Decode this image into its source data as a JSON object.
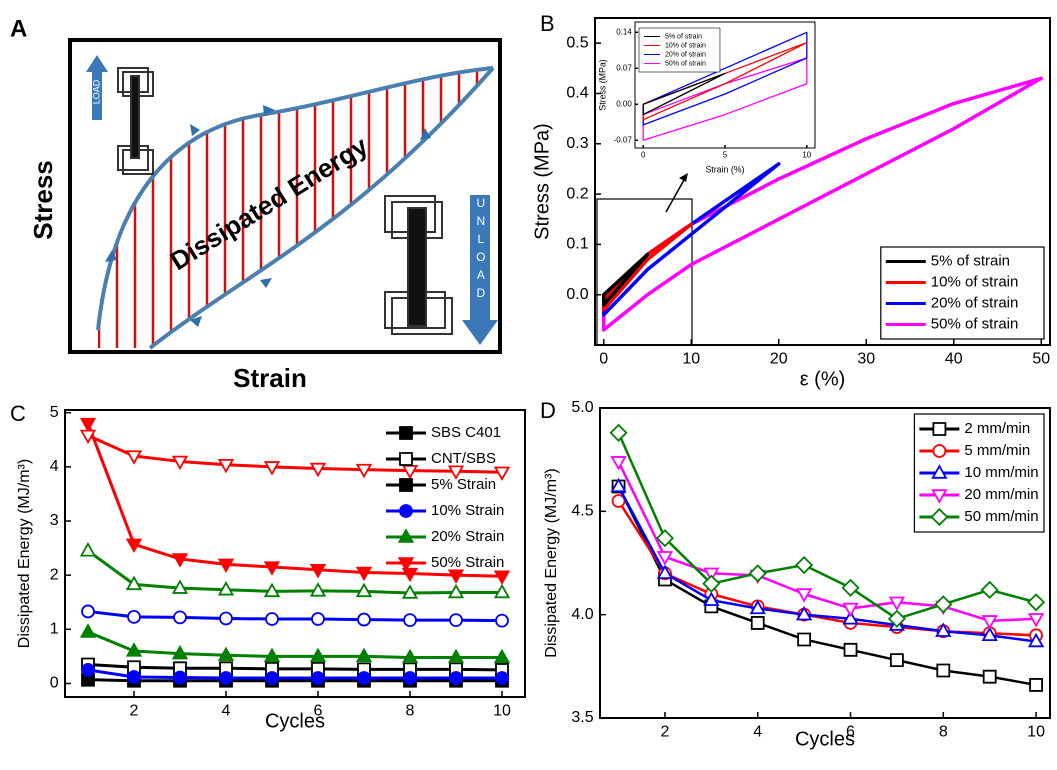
{
  "diagram": {
    "label": "A",
    "y_label": "Stress",
    "x_label": "Strain",
    "region_label": "Dissipated Energy",
    "load_label": "LOAD",
    "unload_label": "UNLOAD"
  },
  "chart_data": [
    {
      "type": "loop",
      "label": "B",
      "x_label": "ε (%)",
      "y_label": "Stress (MPa)",
      "xlim": [
        -1,
        51
      ],
      "ylim": [
        -0.1,
        0.55
      ],
      "xticks": [
        0,
        10,
        20,
        30,
        40,
        50
      ],
      "yticks": [
        {
          "value": 0,
          "label": "0.0"
        },
        0.1,
        0.2,
        0.3,
        0.4,
        0.5
      ],
      "legend": "lower right",
      "legend_frame": true,
      "series": [
        {
          "name": "5% of strain",
          "color": "#000000",
          "x": [
            0,
            2.5,
            5,
            2.5,
            0
          ],
          "y": [
            0,
            0.04,
            0.08,
            0.03,
            -0.02
          ]
        },
        {
          "name": "10% of strain",
          "color": "#ff0000",
          "x": [
            0,
            5,
            10,
            5,
            0
          ],
          "y": [
            -0.01,
            0.08,
            0.14,
            0.07,
            -0.03
          ]
        },
        {
          "name": "20% of strain",
          "color": "#0000ff",
          "x": [
            0,
            5,
            10,
            15,
            20,
            15,
            10,
            5,
            0
          ],
          "y": [
            -0.02,
            0.08,
            0.14,
            0.2,
            0.26,
            0.19,
            0.12,
            0.05,
            -0.04
          ]
        },
        {
          "name": "50% of strain",
          "color": "#ff00ff",
          "x": [
            0,
            5,
            10,
            20,
            30,
            40,
            50,
            40,
            30,
            20,
            10,
            5,
            0
          ],
          "y": [
            -0.02,
            0.08,
            0.14,
            0.23,
            0.31,
            0.38,
            0.43,
            0.33,
            0.24,
            0.15,
            0.06,
            0,
            -0.07
          ]
        }
      ]
    },
    {
      "type": "loop",
      "x_label": "Strain (%)",
      "y_label": "Stress (MPa)",
      "xlim": [
        -0.5,
        10.5
      ],
      "ylim": [
        -0.085,
        0.16
      ],
      "xticks": [
        0,
        5,
        10
      ],
      "yticks": [
        -0.07,
        {
          "value": 0,
          "label": "0.00"
        },
        0.07,
        0.14
      ],
      "legend": "upper left",
      "legend_frame": true,
      "series": [
        {
          "name": "5% of strain",
          "color": "#000000",
          "x": [
            0,
            2.5,
            5,
            2.5,
            0
          ],
          "y": [
            0,
            0.03,
            0.06,
            0.02,
            -0.02
          ]
        },
        {
          "name": "10% of strain",
          "color": "#ff0000",
          "x": [
            0,
            5,
            10,
            5,
            0
          ],
          "y": [
            0,
            0.06,
            0.12,
            0.04,
            -0.03
          ]
        },
        {
          "name": "20% of strain",
          "color": "#0000ff",
          "x": [
            0,
            5,
            10,
            10,
            5,
            0
          ],
          "y": [
            0,
            0.07,
            0.14,
            0.09,
            0.02,
            -0.04
          ]
        },
        {
          "name": "50% of strain",
          "color": "#ff00ff",
          "x": [
            0,
            5,
            10,
            10,
            5,
            0
          ],
          "y": [
            -0.02,
            0.04,
            0.09,
            0.04,
            -0.02,
            -0.07
          ]
        }
      ]
    },
    {
      "type": "line",
      "label": "C",
      "x_label": "Cycles",
      "y_label": "Dissipated Energy (MJ/m³)",
      "xlim": [
        0.5,
        10.5
      ],
      "ylim": [
        -0.25,
        5.05
      ],
      "xticks": [
        2,
        4,
        6,
        8,
        10
      ],
      "yticks": [
        0,
        1,
        2,
        3,
        4,
        5
      ],
      "legend": "upper right",
      "legend_frame": false,
      "x": [
        1,
        2,
        3,
        4,
        5,
        6,
        7,
        8,
        9,
        10
      ],
      "markers": [
        {
          "name": "SBS C401",
          "fill": "filled"
        },
        {
          "name": "CNT/SBS",
          "fill": "open"
        }
      ],
      "series": [
        {
          "name": "5% Strain",
          "color": "#000000",
          "marker": "square",
          "values": [
            [
              0.07,
              0.05,
              0.05,
              0.05,
              0.05,
              0.05,
              0.05,
              0.05,
              0.05,
              0.05
            ],
            [
              0.35,
              0.3,
              0.28,
              0.28,
              0.27,
              0.27,
              0.26,
              0.26,
              0.26,
              0.25
            ]
          ]
        },
        {
          "name": "10% Strain",
          "color": "#0000ff",
          "marker": "circle",
          "values": [
            [
              0.25,
              0.12,
              0.11,
              0.1,
              0.1,
              0.1,
              0.1,
              0.1,
              0.1,
              0.1
            ],
            [
              1.33,
              1.23,
              1.22,
              1.2,
              1.19,
              1.19,
              1.18,
              1.17,
              1.17,
              1.16
            ]
          ]
        },
        {
          "name": "20% Strain",
          "color": "#008000",
          "marker": "triangle-up",
          "values": [
            [
              0.95,
              0.6,
              0.55,
              0.52,
              0.5,
              0.5,
              0.5,
              0.48,
              0.48,
              0.48
            ],
            [
              2.45,
              1.83,
              1.76,
              1.73,
              1.7,
              1.71,
              1.7,
              1.67,
              1.68,
              1.68
            ]
          ]
        },
        {
          "name": "50% Strain",
          "color": "#ff0000",
          "marker": "triangle-down",
          "values": [
            [
              4.8,
              2.57,
              2.3,
              2.2,
              2.15,
              2.1,
              2.05,
              2.03,
              2.0,
              1.98
            ],
            [
              4.58,
              4.2,
              4.1,
              4.04,
              4.0,
              3.97,
              3.95,
              3.93,
              3.92,
              3.9
            ]
          ]
        }
      ]
    },
    {
      "type": "line",
      "label": "D",
      "x_label": "Cycles",
      "y_label": "Dissipated Energy (MJ/m³)",
      "xlim": [
        0.6,
        10.3
      ],
      "ylim": [
        3.5,
        5.0
      ],
      "xticks": [
        2,
        4,
        6,
        8,
        10
      ],
      "yticks": [
        3.5,
        {
          "value": 4,
          "label": "4.0"
        },
        4.5,
        {
          "value": 5,
          "label": "5.0"
        }
      ],
      "legend": "upper right",
      "legend_frame": true,
      "x": [
        1,
        2,
        3,
        4,
        5,
        6,
        7,
        8,
        9,
        10
      ],
      "series": [
        {
          "name": "2 mm/min",
          "color": "#000000",
          "marker": "square",
          "fill": "open",
          "values": [
            4.62,
            4.17,
            4.04,
            3.96,
            3.88,
            3.83,
            3.78,
            3.73,
            3.7,
            3.66
          ]
        },
        {
          "name": "5 mm/min",
          "color": "#ff0000",
          "marker": "circle",
          "fill": "open",
          "values": [
            4.55,
            4.2,
            4.1,
            4.04,
            4.0,
            3.96,
            3.94,
            3.92,
            3.91,
            3.9
          ]
        },
        {
          "name": "10 mm/min",
          "color": "#0000ff",
          "marker": "triangle-up",
          "fill": "open",
          "values": [
            4.62,
            4.2,
            4.07,
            4.03,
            4.0,
            3.98,
            3.95,
            3.92,
            3.9,
            3.87
          ]
        },
        {
          "name": "20 mm/min",
          "color": "#ff00ff",
          "marker": "triangle-down",
          "fill": "open",
          "values": [
            4.74,
            4.28,
            4.2,
            4.19,
            4.1,
            4.03,
            4.06,
            4.04,
            3.97,
            3.98
          ]
        },
        {
          "name": "50 mm/min",
          "color": "#008000",
          "marker": "diamond",
          "fill": "open",
          "values": [
            4.88,
            4.37,
            4.15,
            4.2,
            4.24,
            4.13,
            3.98,
            4.05,
            4.12,
            4.06
          ]
        }
      ]
    }
  ]
}
